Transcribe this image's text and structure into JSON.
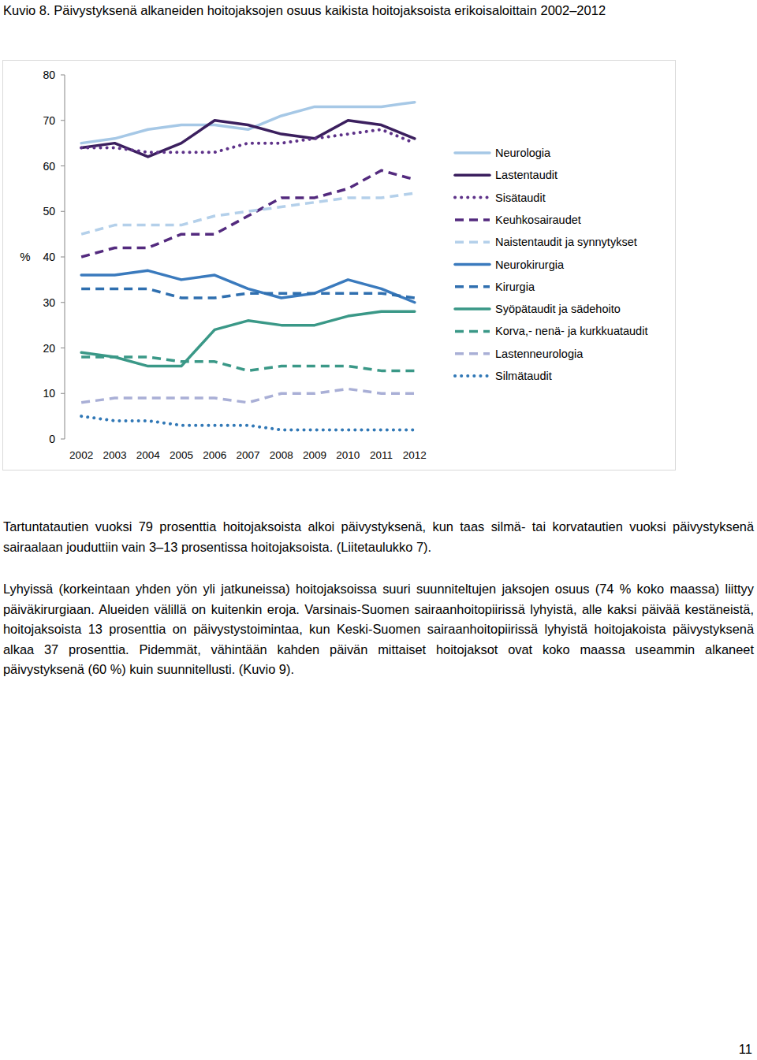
{
  "chart_data": {
    "type": "line",
    "title": "Kuvio 8. Päivystyksenä alkaneiden hoitojaksojen osuus kaikista hoitojaksoista erikoisaloittain 2002–2012",
    "y_label": "%",
    "categories": [
      "2002",
      "2003",
      "2004",
      "2005",
      "2006",
      "2007",
      "2008",
      "2009",
      "2010",
      "2011",
      "2012"
    ],
    "ylim": [
      0,
      80
    ],
    "yticks": [
      0,
      10,
      20,
      30,
      40,
      50,
      60,
      70,
      80
    ],
    "grid": false,
    "legend": "right",
    "series": [
      {
        "name": "Neurologia",
        "color": "#a6c8e6",
        "line_style": "solid",
        "values": [
          65,
          66,
          68,
          69,
          69,
          68,
          71,
          73,
          73,
          73,
          74
        ]
      },
      {
        "name": "Lastentaudit",
        "color": "#3b1f5e",
        "line_style": "solid",
        "values": [
          64,
          65,
          62,
          65,
          70,
          69,
          67,
          66,
          70,
          69,
          66
        ]
      },
      {
        "name": "Sisätaudit",
        "color": "#5e3289",
        "line_style": "dotted",
        "values": [
          64,
          64,
          63,
          63,
          63,
          65,
          65,
          66,
          67,
          68,
          65
        ]
      },
      {
        "name": "Keuhkosairaudet",
        "color": "#532a7e",
        "line_style": "dashed",
        "values": [
          40,
          42,
          42,
          45,
          45,
          49,
          53,
          53,
          55,
          59,
          57
        ]
      },
      {
        "name": "Naistentaudit ja synnytykset",
        "color": "#b4d0ea",
        "line_style": "dashed",
        "values": [
          45,
          47,
          47,
          47,
          49,
          50,
          51,
          52,
          53,
          53,
          54
        ]
      },
      {
        "name": "Neurokirurgia",
        "color": "#3a7abd",
        "line_style": "solid",
        "values": [
          36,
          36,
          37,
          35,
          36,
          33,
          31,
          32,
          35,
          33,
          30
        ]
      },
      {
        "name": "Kirurgia",
        "color": "#2f6faf",
        "line_style": "dashed",
        "values": [
          33,
          33,
          33,
          31,
          31,
          32,
          32,
          32,
          32,
          32,
          31
        ]
      },
      {
        "name": "Syöpätaudit ja sädehoito",
        "color": "#3a9887",
        "line_style": "solid",
        "values": [
          19,
          18,
          16,
          16,
          24,
          26,
          25,
          25,
          27,
          28,
          28
        ]
      },
      {
        "name": "Korva,- nenä- ja kurkkuataudit",
        "color": "#3a9887",
        "line_style": "dashed",
        "values": [
          18,
          18,
          18,
          17,
          17,
          15,
          16,
          16,
          16,
          15,
          15
        ]
      },
      {
        "name": "Lastenneurologia",
        "color": "#a9afd6",
        "line_style": "dashed",
        "values": [
          8,
          9,
          9,
          9,
          9,
          8,
          10,
          10,
          11,
          10,
          10
        ]
      },
      {
        "name": "Silmätaudit",
        "color": "#3178b6",
        "line_style": "dotted",
        "values": [
          5,
          4,
          4,
          3,
          3,
          3,
          2,
          2,
          2,
          2,
          2
        ]
      }
    ]
  },
  "document": {
    "paragraphs": [
      "Tartuntatautien vuoksi 79 prosenttia hoitojaksoista alkoi päivystyksenä, kun taas silmä- tai korvatautien vuoksi päivystyksenä sairaalaan jouduttiin vain 3–13 prosentissa hoitojaksoista. (Liitetaulukko 7).",
      "Lyhyissä (korkeintaan yhden yön yli jatkuneissa) hoitojaksoissa suuri suunniteltujen jaksojen osuus (74 % koko maassa) liittyy päiväkirurgiaan. Alueiden välillä on kuitenkin eroja. Varsinais-Suomen sairaanhoitopiirissä lyhyistä, alle kaksi päivää kestäneistä, hoitojaksoista 13 prosenttia on päivystystoimintaa, kun Keski-Suomen sairaanhoitopiirissä lyhyistä hoitojakoista päivystyksenä alkaa 37 prosenttia. Pidemmät, vähintään kahden päivän mittaiset hoitojaksot ovat koko maassa useammin alkaneet päivystyksenä (60 %) kuin suunnitellusti. (Kuvio 9)."
    ],
    "page_number": "11"
  }
}
